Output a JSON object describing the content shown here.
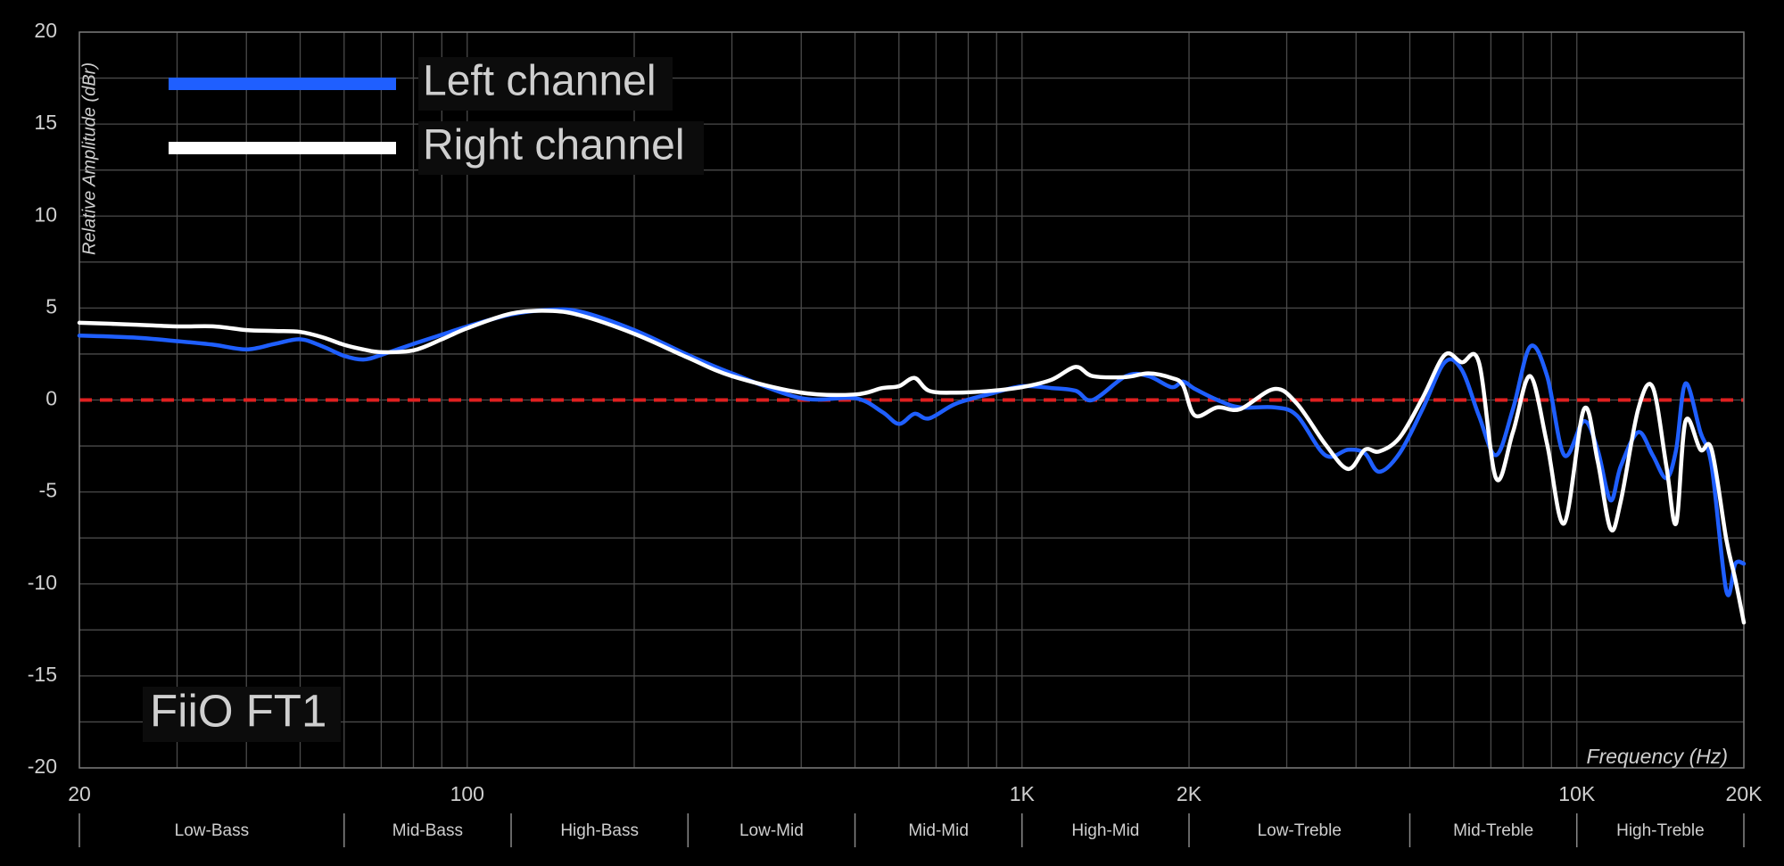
{
  "chart_data": {
    "type": "line",
    "title": "FiiO FT1",
    "x_label": "Frequency (Hz)",
    "y_label": "Relative Amplitude (dBr)",
    "x_log": true,
    "grid": true,
    "legend": "upper left",
    "xlim": [
      20,
      20000
    ],
    "ylim": [
      -20,
      20
    ],
    "xticks": [
      20,
      100,
      {
        "value": 1000,
        "label": "1K"
      },
      {
        "value": 2000,
        "label": "2K"
      },
      {
        "value": 10000,
        "label": "10K"
      },
      {
        "value": 20000,
        "label": "20K"
      }
    ],
    "yticks": [
      -20,
      -15,
      -10,
      -5,
      0,
      5,
      10,
      15,
      20
    ],
    "xgrid": [
      30,
      40,
      50,
      60,
      70,
      80,
      90,
      200,
      300,
      400,
      500,
      600,
      700,
      800,
      900,
      3000,
      4000,
      5000,
      6000,
      7000,
      8000,
      9000
    ],
    "ygrid": [
      -17.5,
      -12.5,
      -7.5,
      -2.5,
      2.5,
      7.5,
      12.5,
      17.5
    ],
    "reference_line": {
      "value": 0,
      "color": "#e02020",
      "style": "dashed"
    },
    "bands": [
      {
        "label": "Low-Bass",
        "from": 20,
        "to": 60
      },
      {
        "label": "Mid-Bass",
        "from": 60,
        "to": 120
      },
      {
        "label": "High-Bass",
        "from": 120,
        "to": 250
      },
      {
        "label": "Low-Mid",
        "from": 250,
        "to": 500
      },
      {
        "label": "Mid-Mid",
        "from": 500,
        "to": 1000
      },
      {
        "label": "High-Mid",
        "from": 1000,
        "to": 2000
      },
      {
        "label": "Low-Treble",
        "from": 2000,
        "to": 5000
      },
      {
        "label": "Mid-Treble",
        "from": 5000,
        "to": 10000
      },
      {
        "label": "High-Treble",
        "from": 10000,
        "to": 20000
      }
    ],
    "x": [
      20,
      25,
      30,
      35,
      40,
      45,
      50,
      55,
      60,
      65,
      70,
      80,
      90,
      100,
      120,
      140,
      160,
      200,
      250,
      300,
      400,
      500,
      560,
      600,
      640,
      680,
      760,
      880,
      1000,
      1130,
      1250,
      1340,
      1540,
      1690,
      1860,
      1950,
      2050,
      2250,
      2470,
      2850,
      3130,
      3520,
      3870,
      4150,
      4400,
      4790,
      5270,
      5780,
      6200,
      6660,
      7150,
      7670,
      8240,
      8840,
      9490,
      10300,
      10900,
      11500,
      12000,
      12900,
      13700,
      14500,
      15100,
      15700,
      16700,
      17500,
      18600,
      19300,
      20000
    ],
    "series": [
      {
        "name": "Left channel",
        "color": "#1f5fff",
        "values": [
          3.5,
          3.4,
          3.2,
          3.0,
          2.75,
          3.05,
          3.3,
          2.9,
          2.4,
          2.2,
          2.45,
          3.05,
          3.55,
          4.0,
          4.65,
          4.9,
          4.8,
          3.8,
          2.45,
          1.45,
          0.1,
          0.1,
          -0.65,
          -1.3,
          -0.75,
          -1.0,
          -0.2,
          0.35,
          0.75,
          0.65,
          0.5,
          0,
          1.3,
          1.3,
          0.7,
          1.0,
          0.6,
          0,
          -0.4,
          -0.4,
          -0.85,
          -3.0,
          -2.7,
          -2.9,
          -3.9,
          -2.9,
          -0.5,
          2.05,
          1.65,
          -0.85,
          -3.0,
          -0.5,
          2.9,
          1.3,
          -3.0,
          -1.15,
          -2.7,
          -5.45,
          -3.6,
          -1.75,
          -3.0,
          -4.25,
          -2.7,
          0.9,
          -1.75,
          -3.6,
          -10.4,
          -8.9,
          -8.9
        ]
      },
      {
        "name": "Right channel",
        "color": "#ffffff",
        "values": [
          4.2,
          4.1,
          4.0,
          4.0,
          3.8,
          3.75,
          3.7,
          3.4,
          3.0,
          2.75,
          2.6,
          2.7,
          3.3,
          3.9,
          4.7,
          4.85,
          4.6,
          3.6,
          2.3,
          1.3,
          0.4,
          0.3,
          0.65,
          0.75,
          1.2,
          0.5,
          0.4,
          0.5,
          0.7,
          1.1,
          1.8,
          1.3,
          1.25,
          1.45,
          1.2,
          0.8,
          -0.85,
          -0.4,
          -0.5,
          0.6,
          -0.2,
          -2.4,
          -3.75,
          -2.7,
          -2.8,
          -2.05,
          0.1,
          2.45,
          2.05,
          2.05,
          -4.25,
          -1.75,
          1.3,
          -2.4,
          -6.7,
          -0.5,
          -3.3,
          -7.0,
          -5.5,
          -0.5,
          0.7,
          -3.6,
          -6.7,
          -1.15,
          -2.7,
          -2.7,
          -7.6,
          -9.75,
          -12.1
        ]
      }
    ]
  }
}
